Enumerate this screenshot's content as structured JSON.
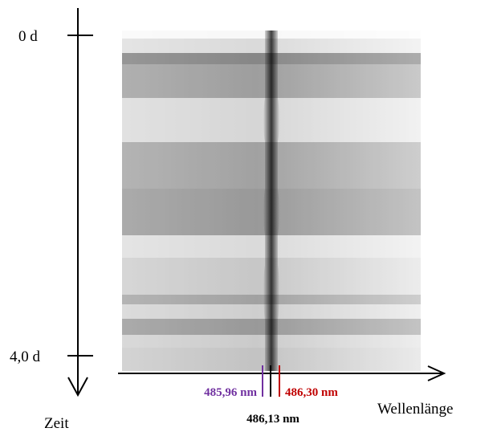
{
  "time_axis": {
    "label": "Zeit",
    "ticks": [
      "0 d",
      "4,0 d"
    ]
  },
  "wavelength_axis": {
    "label": "Wellenlänge"
  },
  "markers": [
    {
      "label": "485,96 nm",
      "color": "#7030a0"
    },
    {
      "label": "486,13 nm",
      "color": "#000000"
    },
    {
      "label": "486,30 nm",
      "color": "#c00000"
    }
  ]
}
